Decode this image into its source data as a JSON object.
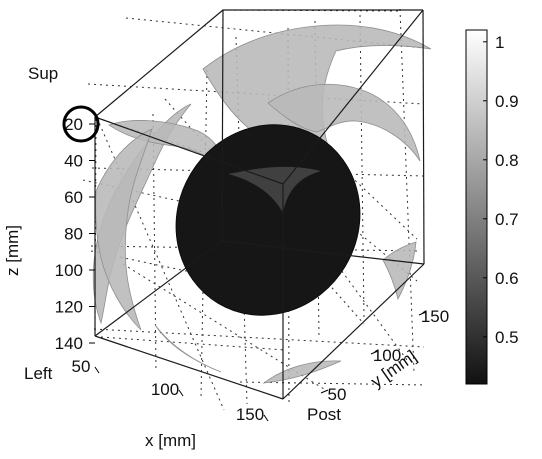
{
  "chart_data": {
    "type": "3d-surface",
    "axes": {
      "x": {
        "label": "x [mm]",
        "ticks": [
          50,
          100,
          150
        ]
      },
      "y": {
        "label": "y [mm]",
        "ticks": [
          50,
          100,
          150
        ]
      },
      "z": {
        "label": "z [mm]",
        "ticks": [
          20,
          40,
          60,
          80,
          100,
          120,
          140
        ]
      }
    },
    "annotations": {
      "sup": "Sup",
      "left": "Left",
      "post": "Post"
    },
    "colorbar": {
      "ticks": [
        0.5,
        0.6,
        0.7,
        0.8,
        0.9,
        1
      ],
      "range": [
        0.42,
        1.02
      ],
      "colors": [
        "#111111",
        "#ffffff"
      ]
    },
    "grid": true,
    "surfaces": [
      {
        "name": "",
        "value": 0.45,
        "color": "#161616"
      },
      {
        "name": "",
        "value": 0.82,
        "color": "#b8b8b8"
      }
    ]
  }
}
